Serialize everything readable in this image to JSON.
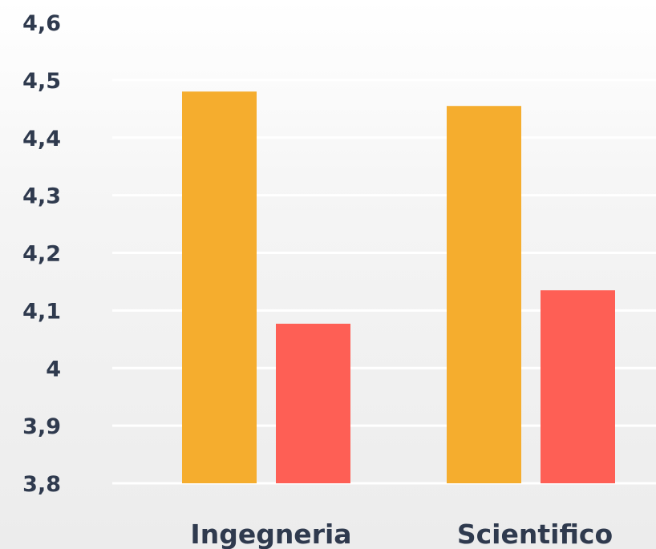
{
  "chart_data": {
    "type": "bar",
    "categories": [
      "Ingegneria",
      "Scientifico"
    ],
    "series": [
      {
        "color": "#f5ad2e",
        "values": [
          4.48,
          4.455
        ]
      },
      {
        "color": "#fe5f55",
        "values": [
          4.077,
          4.135
        ]
      }
    ],
    "ylim": [
      3.8,
      4.6
    ],
    "yticks": [
      3.8,
      3.9,
      4.0,
      4.1,
      4.2,
      4.3,
      4.4,
      4.5,
      4.6
    ],
    "ytick_labels": [
      "3,8",
      "3,9",
      "4",
      "4,1",
      "4,2",
      "4,3",
      "4,4",
      "4,5",
      "4,6"
    ],
    "grid": true,
    "legend": "none",
    "title": "",
    "xlabel": "",
    "ylabel": ""
  }
}
